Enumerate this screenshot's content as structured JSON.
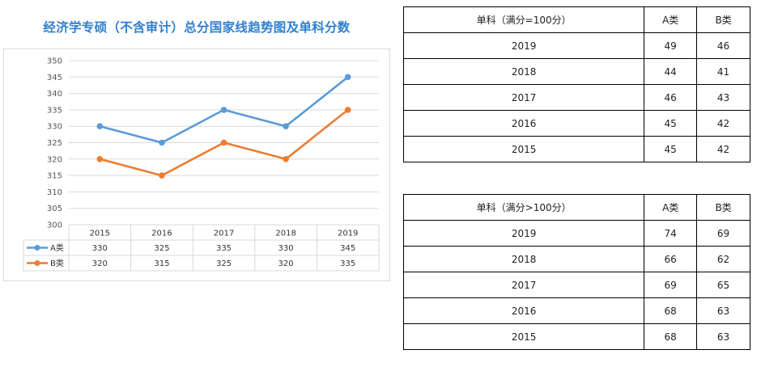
{
  "page_title": "经济学专硕（不含审计）总分国家线趋势图及单科分数",
  "chart_data": {
    "type": "line",
    "title": "经济学专硕（不含审计）总分国家线趋势图及单科分数",
    "categories": [
      "2015",
      "2016",
      "2017",
      "2018",
      "2019"
    ],
    "series": [
      {
        "name": "A类",
        "color": "#5b9bd5",
        "values": [
          330,
          325,
          335,
          330,
          345
        ]
      },
      {
        "name": "B类",
        "color": "#ed7d31",
        "values": [
          320,
          315,
          325,
          320,
          335
        ]
      }
    ],
    "yticks": [
      "350",
      "345",
      "340",
      "335",
      "330",
      "325",
      "320",
      "315",
      "310",
      "305",
      "300"
    ],
    "ylim": [
      300,
      350
    ],
    "grid": true,
    "legend": "data-table"
  },
  "table1": {
    "headers": [
      "单科（满分=100分）",
      "A类",
      "B类"
    ],
    "rows": [
      [
        "2019",
        "49",
        "46"
      ],
      [
        "2018",
        "44",
        "41"
      ],
      [
        "2017",
        "46",
        "43"
      ],
      [
        "2016",
        "45",
        "42"
      ],
      [
        "2015",
        "45",
        "42"
      ]
    ]
  },
  "table2": {
    "headers": [
      "单科（满分>100分）",
      "A类",
      "B类"
    ],
    "rows": [
      [
        "2019",
        "74",
        "69"
      ],
      [
        "2018",
        "66",
        "62"
      ],
      [
        "2017",
        "69",
        "65"
      ],
      [
        "2016",
        "68",
        "63"
      ],
      [
        "2015",
        "68",
        "63"
      ]
    ]
  }
}
